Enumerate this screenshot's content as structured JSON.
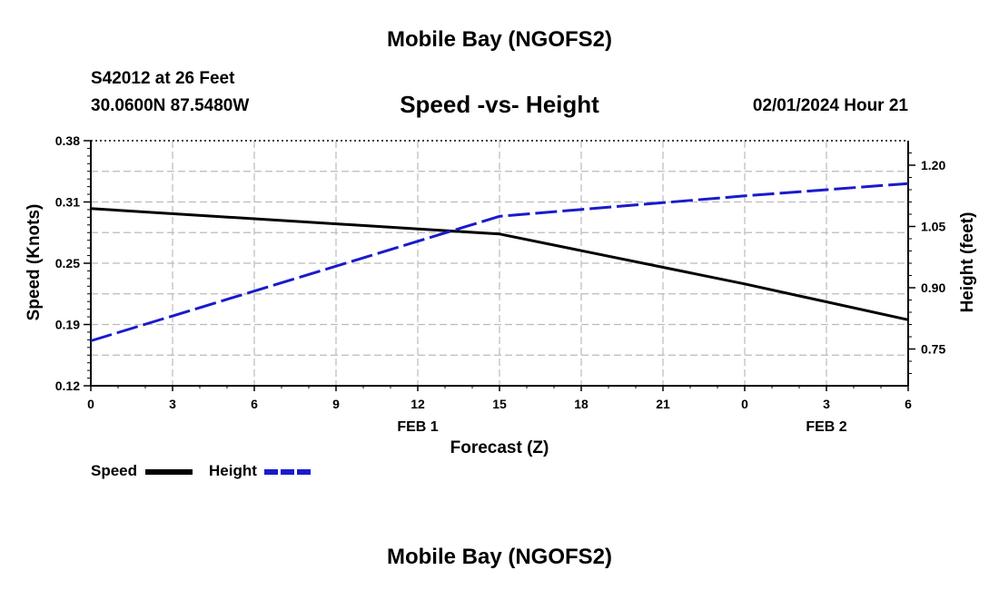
{
  "page": {
    "title_top": "Mobile Bay (NGOFS2)",
    "title_bottom": "Mobile Bay (NGOFS2)",
    "station_line": "S42012 at 26 Feet",
    "coords_line": "30.0600N  87.5480W",
    "datetime_line": "02/01/2024 Hour 21"
  },
  "chart_data": {
    "type": "line",
    "title": "Speed -vs- Height",
    "xlabel": "Forecast (Z)",
    "ylabel_left": "Speed (Knots)",
    "ylabel_right": "Height (feet)",
    "x_ticks": [
      {
        "t": 0,
        "label": "0"
      },
      {
        "t": 3,
        "label": "3"
      },
      {
        "t": 6,
        "label": "6"
      },
      {
        "t": 9,
        "label": "9"
      },
      {
        "t": 12,
        "label": "12"
      },
      {
        "t": 15,
        "label": "15"
      },
      {
        "t": 18,
        "label": "18"
      },
      {
        "t": 21,
        "label": "21"
      },
      {
        "t": 24,
        "label": "0"
      },
      {
        "t": 27,
        "label": "3"
      },
      {
        "t": 30,
        "label": "6"
      }
    ],
    "x_date_labels": [
      {
        "t": 12,
        "label": "FEB 1"
      },
      {
        "t": 27,
        "label": "FEB 2"
      }
    ],
    "xlim": [
      0,
      30
    ],
    "ylim_left": [
      0.12,
      0.38
    ],
    "ylim_right": [
      0.66,
      1.26
    ],
    "y_ticks_left": [
      "0.12",
      "0.19",
      "0.25",
      "0.31",
      "0.38"
    ],
    "y_ticks_right": [
      "0.75",
      "0.90",
      "1.05",
      "1.20"
    ],
    "grid": true,
    "legend_position": "bottom-left",
    "series": [
      {
        "name": "Speed",
        "axis": "left",
        "color": "#000000",
        "style": "solid",
        "points": [
          [
            0,
            0.308
          ],
          [
            15,
            0.281
          ],
          [
            24,
            0.228
          ],
          [
            30,
            0.19
          ]
        ]
      },
      {
        "name": "Height",
        "axis": "right",
        "color": "#1a1acc",
        "style": "dashed",
        "points": [
          [
            0,
            0.77
          ],
          [
            15,
            1.075
          ],
          [
            24,
            1.125
          ],
          [
            30,
            1.155
          ]
        ]
      }
    ]
  }
}
